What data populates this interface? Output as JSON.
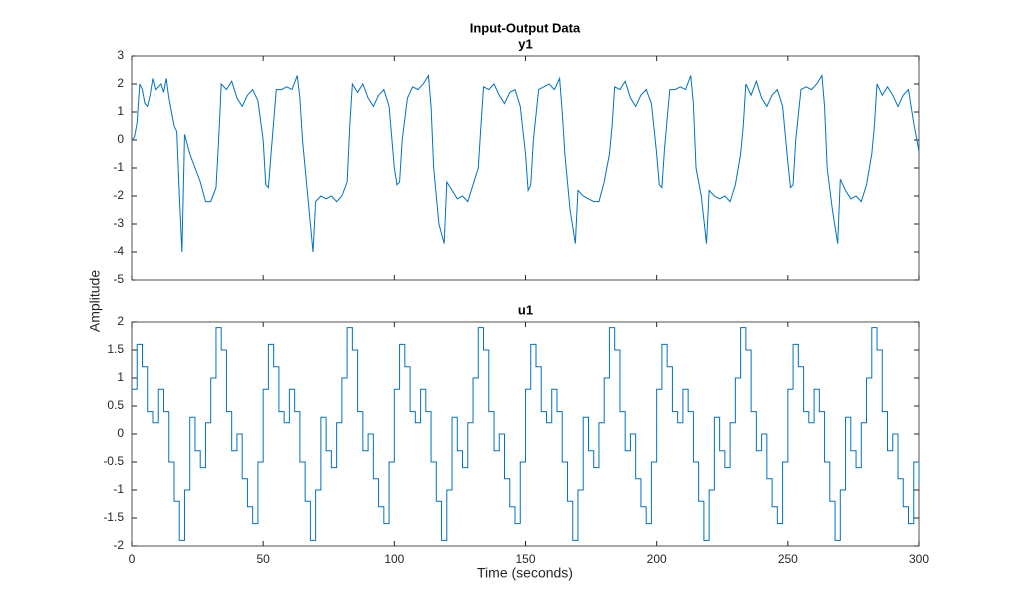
{
  "title": "Input-Output Data",
  "ylabel": "Amplitude",
  "xlabel": "Time (seconds)",
  "chart_data": [
    {
      "type": "line",
      "subtitle": "y1",
      "color": "#0072bd",
      "xlim": [
        0,
        300
      ],
      "xticks": [
        0,
        50,
        100,
        150,
        200,
        250,
        300
      ],
      "ylim": [
        -5,
        3
      ],
      "yticks": [
        -5,
        -4,
        -3,
        -2,
        -1,
        0,
        1,
        2,
        3
      ],
      "x": [
        0,
        1,
        2,
        3,
        4,
        5,
        6,
        7,
        8,
        9,
        10,
        11,
        12,
        13,
        14,
        15,
        16,
        17,
        18,
        19,
        20,
        22,
        24,
        26,
        28,
        30,
        32,
        33,
        34,
        36,
        38,
        40,
        42,
        44,
        46,
        48,
        50,
        51,
        52,
        53,
        55,
        57,
        59,
        61,
        63,
        64,
        65,
        67,
        69,
        70,
        72,
        74,
        76,
        78,
        80,
        82,
        83,
        84,
        86,
        88,
        90,
        92,
        94,
        96,
        98,
        100,
        101,
        102,
        103,
        105,
        107,
        109,
        111,
        113,
        114,
        115,
        117,
        119,
        120,
        122,
        124,
        126,
        128,
        130,
        132,
        133,
        134,
        136,
        138,
        140,
        142,
        144,
        146,
        148,
        150,
        151,
        152,
        153,
        155,
        157,
        159,
        161,
        163,
        164,
        165,
        167,
        169,
        170,
        172,
        174,
        176,
        178,
        180,
        182,
        183,
        184,
        186,
        188,
        190,
        192,
        194,
        196,
        198,
        200,
        201,
        202,
        203,
        205,
        207,
        209,
        211,
        213,
        214,
        215,
        217,
        219,
        220,
        222,
        224,
        226,
        228,
        230,
        232,
        233,
        234,
        236,
        238,
        240,
        242,
        244,
        246,
        248,
        250,
        251,
        252,
        253,
        255,
        257,
        259,
        261,
        263,
        264,
        265,
        267,
        269,
        270,
        272,
        274,
        276,
        278,
        280,
        282,
        283,
        284,
        286,
        288,
        290,
        292,
        294,
        296,
        298,
        300
      ],
      "values": [
        0,
        0.1,
        0.6,
        2.0,
        1.8,
        1.3,
        1.2,
        1.6,
        2.2,
        1.8,
        1.9,
        2.0,
        1.7,
        2.2,
        1.5,
        1.0,
        0.5,
        0.3,
        -2.0,
        -4,
        0.2,
        -0.5,
        -1.0,
        -1.5,
        -2.2,
        -2.2,
        -1.7,
        0,
        2.0,
        1.8,
        2.1,
        1.5,
        1.2,
        1.6,
        1.8,
        1.4,
        0,
        -1.6,
        -1.7,
        -0.5,
        1.8,
        1.8,
        1.9,
        1.8,
        2.3,
        1.5,
        0,
        -2.0,
        -4,
        -2.2,
        -2.0,
        -2.1,
        -2.0,
        -2.2,
        -2.0,
        -1.5,
        0.5,
        2.0,
        1.7,
        2.0,
        1.5,
        1.2,
        1.6,
        1.8,
        1.2,
        -1.0,
        -1.6,
        -1.5,
        0,
        1.5,
        1.9,
        1.8,
        2.0,
        2.3,
        1.2,
        -1.0,
        -3.0,
        -3.7,
        -1.5,
        -1.8,
        -2.1,
        -2.0,
        -2.2,
        -1.6,
        -1.0,
        0.5,
        1.9,
        1.8,
        2.0,
        1.6,
        1.3,
        1.7,
        1.8,
        1.2,
        -0.5,
        -1.8,
        -1.6,
        0,
        1.8,
        1.9,
        2.0,
        1.8,
        2.2,
        1.0,
        -0.5,
        -2.5,
        -3.7,
        -1.8,
        -2.0,
        -2.1,
        -2.2,
        -2.2,
        -1.5,
        -0.5,
        0.5,
        1.9,
        1.8,
        2.1,
        1.5,
        1.2,
        1.6,
        1.8,
        1.3,
        -0.5,
        -1.6,
        -1.7,
        -0.3,
        1.8,
        1.8,
        1.9,
        1.8,
        2.3,
        1.3,
        -1.0,
        -2.0,
        -3.7,
        -1.8,
        -2.0,
        -2.1,
        -2.0,
        -2.2,
        -1.6,
        -0.5,
        0.5,
        2.0,
        1.6,
        2.1,
        1.5,
        1.2,
        1.6,
        1.8,
        1.2,
        -0.8,
        -1.7,
        -1.6,
        0,
        1.8,
        1.9,
        1.8,
        2.0,
        2.3,
        1.2,
        -1.0,
        -2.5,
        -3.7,
        -1.4,
        -1.8,
        -2.1,
        -2.0,
        -2.2,
        -1.6,
        -0.5,
        0.5,
        2.0,
        1.6,
        1.9,
        1.6,
        1.2,
        1.6,
        1.8,
        0.6,
        -0.4
      ]
    },
    {
      "type": "line",
      "step": true,
      "subtitle": "u1",
      "color": "#0072bd",
      "xlim": [
        0,
        300
      ],
      "xticks": [
        0,
        50,
        100,
        150,
        200,
        250,
        300
      ],
      "ylim": [
        -2,
        2
      ],
      "yticks": [
        -2,
        -1.5,
        -1,
        -0.5,
        0,
        0.5,
        1,
        1.5,
        2
      ],
      "x": [
        0,
        2,
        4,
        6,
        8,
        10,
        12,
        14,
        16,
        18,
        20,
        22,
        24,
        26,
        28,
        30,
        32,
        34,
        36,
        38,
        40,
        42,
        44,
        46,
        48,
        50,
        52,
        54,
        56,
        58,
        60,
        62,
        64,
        66,
        68,
        70,
        72,
        74,
        76,
        78,
        80,
        82,
        84,
        86,
        88,
        90,
        92,
        94,
        96,
        98,
        100,
        102,
        104,
        106,
        108,
        110,
        112,
        114,
        116,
        118,
        120,
        122,
        124,
        126,
        128,
        130,
        132,
        134,
        136,
        138,
        140,
        142,
        144,
        146,
        148,
        150,
        152,
        154,
        156,
        158,
        160,
        162,
        164,
        166,
        168,
        170,
        172,
        174,
        176,
        178,
        180,
        182,
        184,
        186,
        188,
        190,
        192,
        194,
        196,
        198,
        200,
        202,
        204,
        206,
        208,
        210,
        212,
        214,
        216,
        218,
        220,
        222,
        224,
        226,
        228,
        230,
        232,
        234,
        236,
        238,
        240,
        242,
        244,
        246,
        248,
        250,
        252,
        254,
        256,
        258,
        260,
        262,
        264,
        266,
        268,
        270,
        272,
        274,
        276,
        278,
        280,
        282,
        284,
        286,
        288,
        290,
        292,
        294,
        296,
        298,
        300
      ],
      "values": [
        0.8,
        1.6,
        1.2,
        0.4,
        0.2,
        0.8,
        0.4,
        -0.5,
        -1.2,
        -1.9,
        -1.0,
        0.3,
        -0.3,
        -0.6,
        0.2,
        1.0,
        1.9,
        1.5,
        0.4,
        -0.3,
        0.0,
        -0.8,
        -1.3,
        -1.6,
        -0.5,
        0.8,
        1.6,
        1.2,
        0.4,
        0.2,
        0.8,
        0.4,
        -0.5,
        -1.2,
        -1.9,
        -1.0,
        0.3,
        -0.3,
        -0.6,
        0.2,
        1.0,
        1.9,
        1.5,
        0.4,
        -0.3,
        0.0,
        -0.8,
        -1.3,
        -1.6,
        -0.5,
        0.8,
        1.6,
        1.2,
        0.4,
        0.2,
        0.8,
        0.4,
        -0.5,
        -1.2,
        -1.9,
        -1.0,
        0.3,
        -0.3,
        -0.6,
        0.2,
        1.0,
        1.9,
        1.5,
        0.4,
        -0.3,
        0.0,
        -0.8,
        -1.3,
        -1.6,
        -0.5,
        0.8,
        1.6,
        1.2,
        0.4,
        0.2,
        0.8,
        0.4,
        -0.5,
        -1.2,
        -1.9,
        -1.0,
        0.3,
        -0.3,
        -0.6,
        0.2,
        1.0,
        1.9,
        1.5,
        0.4,
        -0.3,
        0.0,
        -0.8,
        -1.3,
        -1.6,
        -0.5,
        0.8,
        1.6,
        1.2,
        0.4,
        0.2,
        0.8,
        0.4,
        -0.5,
        -1.2,
        -1.9,
        -1.0,
        0.3,
        -0.3,
        -0.6,
        0.2,
        1.0,
        1.9,
        1.5,
        0.4,
        -0.3,
        0.0,
        -0.8,
        -1.3,
        -1.6,
        -0.5,
        0.8,
        1.6,
        1.2,
        0.4,
        0.2,
        0.8,
        0.4,
        -0.5,
        -1.2,
        -1.9,
        -1.0,
        0.3,
        -0.3,
        -0.6,
        0.2,
        1.0,
        1.9,
        1.5,
        0.4,
        -0.3,
        0.0,
        -0.8,
        -1.3,
        -1.6,
        -0.5,
        -0.9
      ]
    }
  ]
}
